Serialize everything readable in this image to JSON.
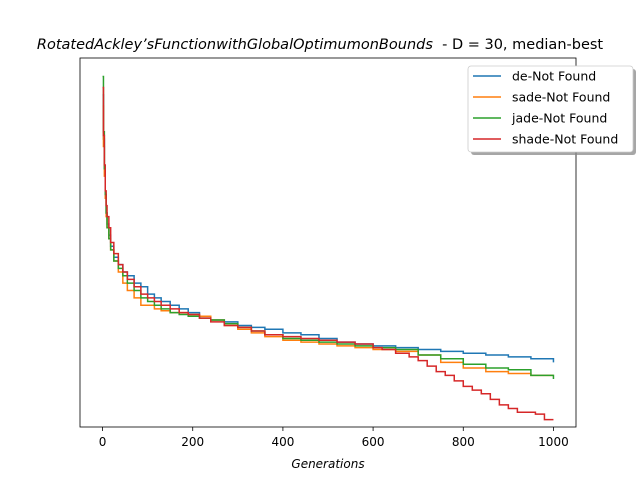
{
  "chart_data": {
    "type": "line",
    "title_italic": "RotatedAckley’sFunctionwithGlobalOptimumonBounds",
    "title_rest": "  - D = 30, median-best",
    "xlabel": "Generations",
    "ylabel": "",
    "xlim": [
      -50,
      1050
    ],
    "ylim": [
      0,
      100
    ],
    "xticks": [
      0,
      200,
      400,
      600,
      800,
      1000
    ],
    "y_ticks_visible": false,
    "grid": false,
    "legend_position": "top-right",
    "series": [
      {
        "name": "de-Not Found",
        "color": "#1f77b4",
        "x": [
          0,
          2,
          4,
          6,
          8,
          10,
          14,
          18,
          25,
          35,
          45,
          55,
          70,
          85,
          100,
          115,
          130,
          150,
          170,
          190,
          215,
          240,
          270,
          300,
          330,
          360,
          400,
          440,
          480,
          520,
          560,
          600,
          650,
          700,
          750,
          800,
          850,
          900,
          950,
          1000
        ],
        "y": [
          90,
          78,
          70,
          63,
          58,
          55,
          52,
          49,
          46,
          44,
          42,
          41,
          39,
          38,
          36,
          35,
          34,
          33,
          32,
          31,
          30,
          29,
          28.5,
          27.5,
          27,
          26.5,
          25.5,
          25,
          24,
          23,
          22.5,
          22,
          21.5,
          21,
          20.5,
          20,
          19.5,
          19,
          18.5,
          17.5
        ]
      },
      {
        "name": "sade-Not Found",
        "color": "#ff7f0e",
        "x": [
          0,
          2,
          4,
          6,
          8,
          10,
          14,
          18,
          25,
          35,
          45,
          55,
          70,
          85,
          100,
          115,
          130,
          150,
          170,
          190,
          215,
          240,
          270,
          300,
          330,
          360,
          400,
          440,
          480,
          520,
          560,
          600,
          650,
          700,
          750,
          800,
          850,
          900,
          950,
          1000
        ],
        "y": [
          87,
          76,
          68,
          62,
          57,
          54,
          51,
          48,
          45,
          42,
          39,
          37,
          35,
          33,
          33,
          32,
          31.5,
          31,
          31,
          30.5,
          30,
          29,
          27.5,
          26.5,
          25.5,
          24.5,
          23.5,
          23,
          22.5,
          22,
          21.5,
          21,
          20.5,
          19.5,
          17.5,
          16,
          15,
          14.5,
          14,
          14
        ]
      },
      {
        "name": "jade-Not Found",
        "color": "#2ca02c",
        "x": [
          0,
          2,
          4,
          6,
          8,
          10,
          14,
          18,
          25,
          35,
          45,
          55,
          70,
          85,
          100,
          115,
          130,
          150,
          170,
          190,
          215,
          240,
          270,
          300,
          330,
          360,
          400,
          440,
          480,
          520,
          560,
          600,
          650,
          700,
          750,
          800,
          850,
          900,
          950,
          1000
        ],
        "y": [
          95,
          80,
          70,
          63,
          58,
          54,
          51,
          48,
          45,
          43,
          41,
          39,
          37,
          35,
          34,
          33,
          32,
          31,
          30.5,
          30,
          29.5,
          29,
          28,
          27,
          26,
          25,
          24,
          23.5,
          23,
          22.5,
          22,
          21.5,
          21,
          19.5,
          18.5,
          17,
          16,
          15.5,
          14,
          13
        ]
      },
      {
        "name": "shade-Not Found",
        "color": "#d62728",
        "x": [
          0,
          2,
          4,
          6,
          8,
          10,
          14,
          18,
          25,
          35,
          45,
          55,
          70,
          85,
          100,
          115,
          130,
          150,
          170,
          190,
          215,
          240,
          270,
          300,
          330,
          360,
          400,
          440,
          480,
          520,
          560,
          600,
          620,
          650,
          680,
          700,
          720,
          740,
          760,
          780,
          800,
          820,
          840,
          860,
          880,
          900,
          920,
          960,
          980,
          1000
        ],
        "y": [
          92,
          79,
          71,
          64,
          60,
          57,
          54,
          50,
          47,
          44,
          42,
          40,
          38,
          36,
          35,
          34,
          33,
          32,
          31,
          30.5,
          29.5,
          28.5,
          27.5,
          27,
          26,
          25,
          24.5,
          24,
          23.5,
          23,
          22.5,
          21.5,
          21,
          20,
          19,
          18,
          16.5,
          15,
          14,
          12.5,
          11,
          10,
          9,
          7.5,
          6,
          5,
          4,
          3.5,
          2,
          2
        ]
      }
    ]
  }
}
